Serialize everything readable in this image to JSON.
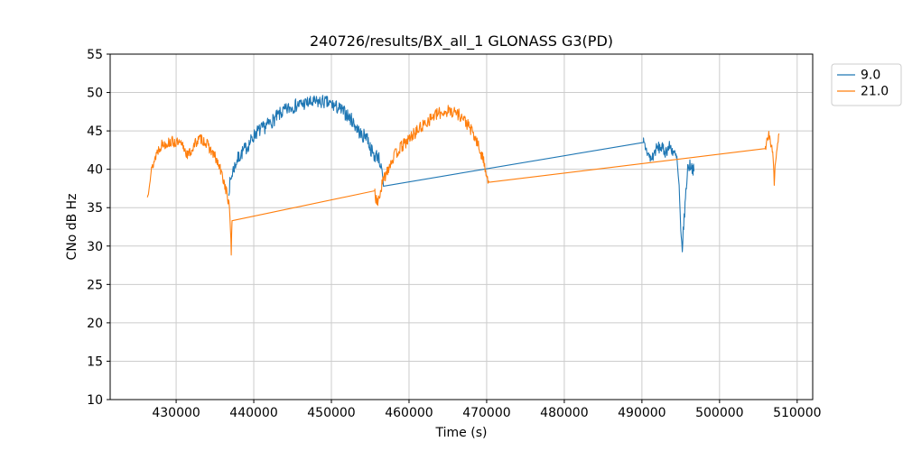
{
  "figure": {
    "title": "240726/results/BX_all_1 GLONASS G3(PD)"
  },
  "chart_data": {
    "type": "line",
    "title": "240726/results/BX_all_1 GLONASS G3(PD)",
    "xlabel": "Time (s)",
    "ylabel": "CNo dB Hz",
    "xlim": [
      421500,
      512000
    ],
    "ylim": [
      10,
      55
    ],
    "xticks": [
      430000,
      440000,
      450000,
      460000,
      470000,
      480000,
      490000,
      500000,
      510000
    ],
    "yticks": [
      10,
      15,
      20,
      25,
      30,
      35,
      40,
      45,
      50,
      55
    ],
    "grid": true,
    "legend_position": "outside-top-right",
    "series": [
      {
        "name": "9.0",
        "color": "#1f77b4",
        "seed": 7,
        "segments": [
          {
            "noise": 0.9,
            "points": [
              [
                436800,
                37.5
              ],
              [
                437300,
                39.8
              ],
              [
                437900,
                41.3
              ],
              [
                438600,
                42.3
              ],
              [
                439400,
                43.3
              ],
              [
                440300,
                44.8
              ],
              [
                441300,
                45.4
              ],
              [
                442400,
                46.3
              ],
              [
                443500,
                47.3
              ],
              [
                444600,
                48.0
              ],
              [
                445700,
                48.4
              ],
              [
                446800,
                48.6
              ],
              [
                447900,
                48.7
              ],
              [
                449000,
                48.8
              ],
              [
                450100,
                48.4
              ],
              [
                451000,
                47.9
              ],
              [
                451900,
                47.2
              ],
              [
                452700,
                46.3
              ],
              [
                453400,
                45.2
              ],
              [
                454000,
                44.2
              ],
              [
                454500,
                44.6
              ],
              [
                455000,
                42.8
              ],
              [
                455500,
                41.7
              ],
              [
                456000,
                41.9
              ],
              [
                456400,
                40.2
              ],
              [
                456700,
                37.8
              ]
            ]
          },
          {
            "noise": 0,
            "points": [
              [
                456700,
                37.8
              ],
              [
                490200,
                43.5
              ]
            ]
          },
          {
            "noise": 0.8,
            "points": [
              [
                490200,
                43.5
              ],
              [
                490700,
                42.2
              ],
              [
                491200,
                41.2
              ],
              [
                491800,
                42.6
              ],
              [
                492400,
                42.9
              ],
              [
                493000,
                42.3
              ],
              [
                493600,
                43.0
              ],
              [
                494100,
                42.2
              ],
              [
                494500,
                41.3
              ],
              [
                494800,
                37.5
              ],
              [
                495000,
                31.5
              ],
              [
                495200,
                29.8
              ],
              [
                495500,
                34.5
              ],
              [
                495900,
                40.3
              ],
              [
                496300,
                40.6
              ],
              [
                496700,
                39.8
              ]
            ]
          }
        ]
      },
      {
        "name": "21.0",
        "color": "#ff7f0e",
        "seed": 13,
        "segments": [
          {
            "noise": 0.7,
            "points": [
              [
                426300,
                36.3
              ],
              [
                426600,
                38.8
              ],
              [
                427000,
                40.5
              ],
              [
                427500,
                42.2
              ],
              [
                428100,
                43.2
              ],
              [
                428800,
                43.4
              ],
              [
                429500,
                43.6
              ],
              [
                430200,
                43.4
              ],
              [
                430900,
                43.0
              ],
              [
                431500,
                41.8
              ],
              [
                432000,
                42.5
              ],
              [
                432600,
                43.6
              ],
              [
                433200,
                44.0
              ],
              [
                433800,
                43.5
              ],
              [
                434400,
                42.6
              ],
              [
                435000,
                41.6
              ],
              [
                435600,
                40.2
              ],
              [
                436100,
                38.6
              ],
              [
                436500,
                37.0
              ],
              [
                436800,
                35.3
              ],
              [
                437000,
                32.5
              ],
              [
                437100,
                29.3
              ],
              [
                437200,
                33.3
              ]
            ]
          },
          {
            "noise": 0,
            "points": [
              [
                437200,
                33.3
              ],
              [
                455600,
                37.2
              ]
            ]
          },
          {
            "noise": 0.8,
            "points": [
              [
                455600,
                37.2
              ],
              [
                455850,
                35.4
              ],
              [
                456200,
                36.6
              ],
              [
                456700,
                38.6
              ],
              [
                457300,
                40.2
              ],
              [
                458000,
                41.6
              ],
              [
                458800,
                42.7
              ],
              [
                459700,
                43.6
              ],
              [
                460600,
                44.6
              ],
              [
                461500,
                45.4
              ],
              [
                462400,
                46.3
              ],
              [
                463300,
                47.0
              ],
              [
                464200,
                47.4
              ],
              [
                465100,
                47.6
              ],
              [
                465900,
                47.5
              ],
              [
                466600,
                47.0
              ],
              [
                467300,
                46.2
              ],
              [
                468000,
                45.1
              ],
              [
                468700,
                43.6
              ],
              [
                469300,
                42.0
              ],
              [
                469800,
                40.4
              ],
              [
                470100,
                38.9
              ],
              [
                470300,
                38.3
              ]
            ]
          },
          {
            "noise": 0,
            "points": [
              [
                470300,
                38.3
              ],
              [
                505900,
                42.7
              ]
            ]
          },
          {
            "noise": 0.5,
            "points": [
              [
                505900,
                42.7
              ],
              [
                506100,
                43.6
              ],
              [
                506350,
                44.6
              ],
              [
                506600,
                43.2
              ],
              [
                506800,
                42.4
              ],
              [
                506950,
                41.0
              ],
              [
                507050,
                38.3
              ],
              [
                507150,
                40.0
              ],
              [
                507350,
                42.0
              ],
              [
                507550,
                43.8
              ],
              [
                507650,
                44.6
              ]
            ]
          }
        ]
      }
    ]
  }
}
